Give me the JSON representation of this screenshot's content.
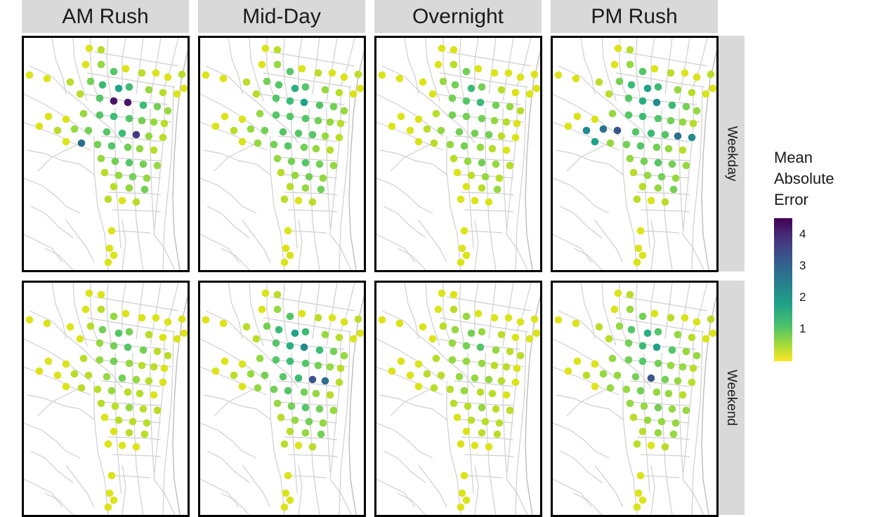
{
  "columns": [
    "AM Rush",
    "Mid-Day",
    "Overnight",
    "PM Rush"
  ],
  "rows": [
    "Weekday",
    "Weekend"
  ],
  "legend": {
    "title_lines": [
      "Mean",
      "Absolute",
      "Error"
    ],
    "ticks": [
      "1",
      "2",
      "3",
      "4"
    ],
    "scale": "viridis",
    "colors": {
      "low": "#fde725",
      "high": "#440154"
    }
  }
}
